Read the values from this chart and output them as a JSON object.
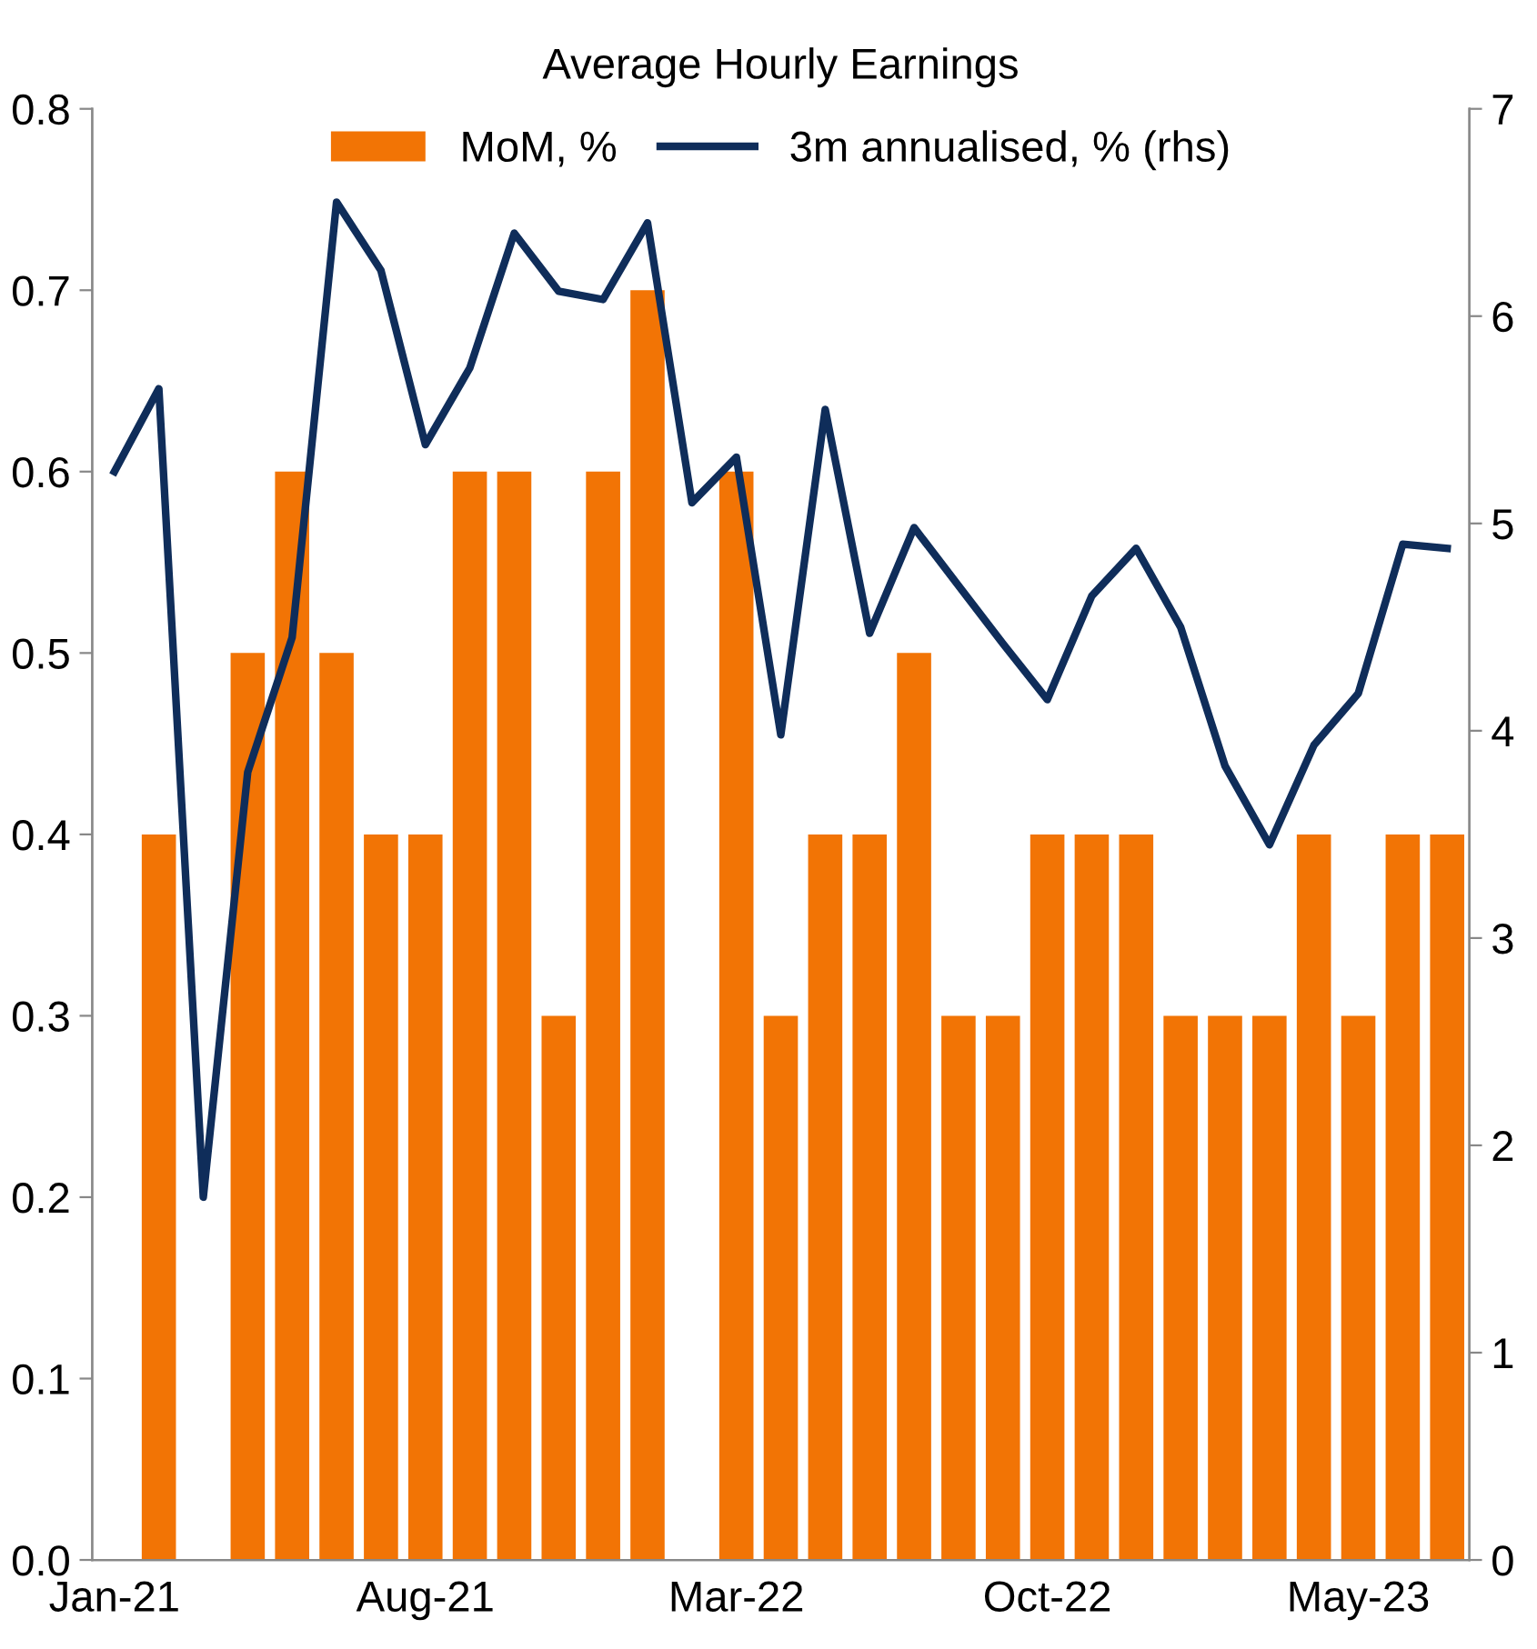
{
  "chart_data": {
    "type": "bar",
    "title": "Average Hourly Earnings",
    "categories": [
      "Jan-21",
      null,
      null,
      null,
      null,
      null,
      null,
      "Aug-21",
      null,
      null,
      null,
      null,
      null,
      null,
      "Mar-22",
      null,
      null,
      null,
      null,
      null,
      null,
      "Oct-22",
      null,
      null,
      null,
      null,
      null,
      null,
      "May-23",
      null,
      null
    ],
    "series": [
      {
        "name": "MoM, %",
        "color": "#f27405",
        "values": [
          null,
          0.4,
          null,
          0.5,
          0.6,
          0.5,
          0.4,
          0.4,
          0.6,
          0.6,
          0.3,
          0.6,
          0.7,
          null,
          0.6,
          0.3,
          0.4,
          0.4,
          0.5,
          0.3,
          0.3,
          0.4,
          0.4,
          0.4,
          0.3,
          0.3,
          0.3,
          0.4,
          0.3,
          0.4,
          0.4
        ]
      },
      {
        "name": "3m annualised, % (rhs)",
        "type": "line",
        "axis": "y2",
        "color": "#0f2d5a",
        "values": [
          5.25,
          5.65,
          1.75,
          3.8,
          4.45,
          6.55,
          6.22,
          5.38,
          5.75,
          6.4,
          6.12,
          6.08,
          6.45,
          5.1,
          5.32,
          3.98,
          5.55,
          4.47,
          4.98,
          4.7,
          4.42,
          4.15,
          4.65,
          4.88,
          4.5,
          3.83,
          3.45,
          3.93,
          4.18,
          4.9,
          4.88
        ]
      }
    ],
    "ylim": [
      0,
      0.8
    ],
    "yticks": [
      {
        "value": 0,
        "label": "0.0"
      },
      0.1,
      0.2,
      0.3,
      0.4,
      0.5,
      0.6,
      0.7,
      0.8
    ],
    "y2lim": [
      0,
      7
    ],
    "y2ticks": [
      0,
      1,
      2,
      3,
      4,
      5,
      6,
      7
    ],
    "grid": false,
    "legend": "top"
  }
}
